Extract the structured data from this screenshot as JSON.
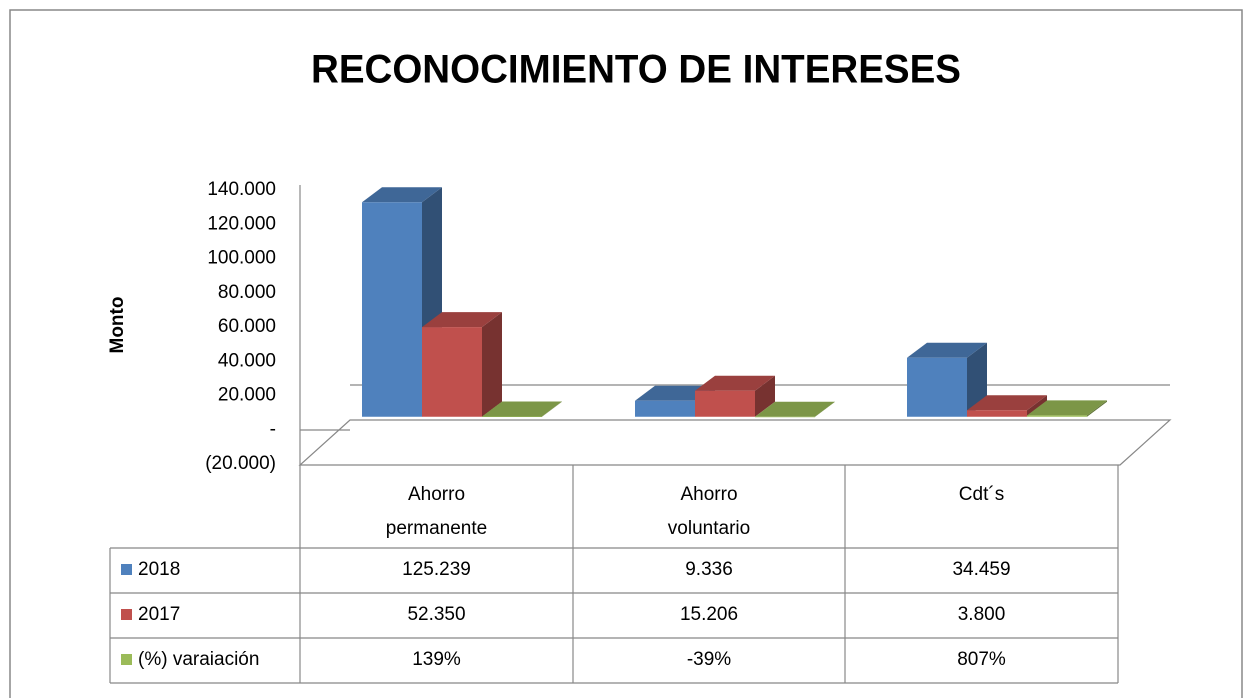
{
  "chart_data": {
    "type": "bar3d",
    "title": "RECONOCIMIENTO DE INTERESES",
    "y_label": "Monto",
    "categories": [
      "Ahorro permanente",
      "Ahorro voluntario",
      "Cdt´s"
    ],
    "series": [
      {
        "name": "2018",
        "color": "#4f81bd",
        "values": [
          125239,
          9336,
          34459
        ],
        "value_labels": [
          "125.239",
          "9.336",
          "34.459"
        ]
      },
      {
        "name": "2017",
        "color": "#c0504d",
        "values": [
          52350,
          15206,
          3800
        ],
        "value_labels": [
          "52.350",
          "15.206",
          "3.800"
        ]
      },
      {
        "name": "(%) varaiación",
        "color": "#9bbb59",
        "values": [
          139,
          -39,
          807
        ],
        "value_labels": [
          "139%",
          "-39%",
          "807%"
        ]
      }
    ],
    "ylim": [
      -20000,
      140000
    ],
    "yticks": [
      {
        "value": -20000,
        "label": "(20.000)"
      },
      {
        "value": 0,
        "label": "-"
      },
      {
        "value": 20000,
        "label": "20.000"
      },
      {
        "value": 40000,
        "label": "40.000"
      },
      {
        "value": 60000,
        "label": "60.000"
      },
      {
        "value": 80000,
        "label": "80.000"
      },
      {
        "value": 100000,
        "label": "100.000"
      },
      {
        "value": 120000,
        "label": "120.000"
      },
      {
        "value": 140000,
        "label": "140.000"
      }
    ]
  }
}
